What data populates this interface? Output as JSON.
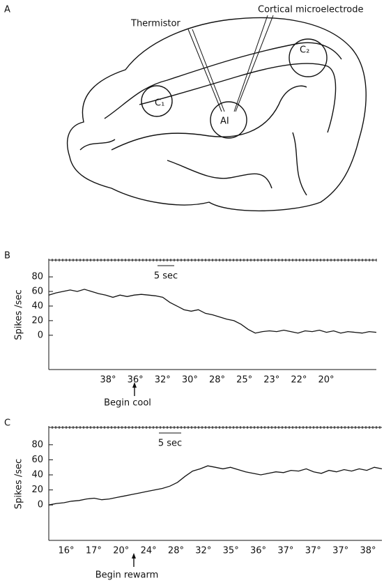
{
  "diagram": {
    "panel_label": "A",
    "thermistor_label": "Thermistor",
    "electrode_label": "Cortical microelectrode",
    "regions": [
      "C₁",
      "AI",
      "C₂"
    ]
  },
  "chart_data": [
    {
      "type": "line",
      "panel_label": "B",
      "y_label": "Spikes /sec",
      "scale_bar_label": "5 sec",
      "annotation": "Begin cool",
      "color": "#111111",
      "temperature_labels": [
        "38°",
        "36°",
        "32°",
        "30°",
        "28°",
        "25°",
        "23°",
        "22°",
        "20°"
      ],
      "values": [
        55,
        58,
        60,
        62,
        60,
        63,
        60,
        57,
        55,
        52,
        55,
        53,
        55,
        56,
        55,
        54,
        52,
        45,
        40,
        35,
        33,
        35,
        30,
        28,
        25,
        22,
        20,
        15,
        8,
        3,
        5,
        6,
        5,
        7,
        5,
        3,
        6,
        5,
        7,
        4,
        6,
        3,
        5,
        4,
        3,
        5,
        4
      ],
      "ylim": [
        -47,
        103
      ],
      "yticks": [
        0,
        20,
        40,
        60,
        80
      ]
    },
    {
      "type": "line",
      "panel_label": "C",
      "y_label": "Spikes /sec",
      "scale_bar_label": "5 sec",
      "annotation": "Begin rewarm",
      "color": "#111111",
      "temperature_labels": [
        "16°",
        "17°",
        "20°",
        "24°",
        "28°",
        "32°",
        "35°",
        "36°",
        "37°",
        "37°",
        "37°",
        "38°"
      ],
      "values": [
        0,
        2,
        3,
        5,
        6,
        8,
        9,
        7,
        8,
        10,
        12,
        14,
        16,
        18,
        20,
        22,
        25,
        30,
        38,
        45,
        48,
        52,
        50,
        48,
        50,
        47,
        44,
        42,
        40,
        42,
        44,
        43,
        46,
        45,
        48,
        44,
        42,
        46,
        44,
        47,
        45,
        48,
        46,
        50,
        48
      ],
      "ylim": [
        -47,
        103
      ],
      "yticks": [
        0,
        20,
        40,
        60,
        80
      ]
    }
  ]
}
